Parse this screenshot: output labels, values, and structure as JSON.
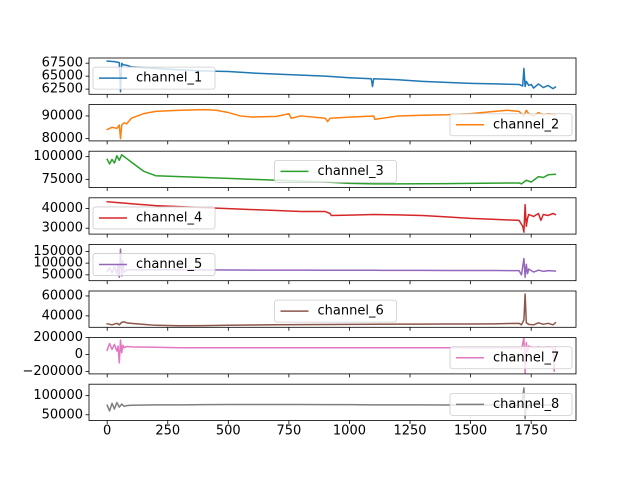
{
  "chart_data": {
    "type": "line",
    "layout": "8 stacked subplots sharing x axis",
    "xlim": [
      -75,
      1935
    ],
    "x_ticks": [
      0,
      250,
      500,
      750,
      1000,
      1250,
      1500,
      1750
    ],
    "x_tick_labels": [
      "0",
      "250",
      "500",
      "750",
      "1000",
      "1250",
      "1500",
      "1750"
    ],
    "grid": false,
    "panels": [
      {
        "name": "channel_1",
        "color": "#1f77b4",
        "legend_loc": "left",
        "ylim": [
          61500,
          68500
        ],
        "yticks": [
          62500,
          65000,
          67500
        ],
        "ytick_labels": [
          "62500",
          "65000",
          "67500"
        ],
        "x": [
          0,
          30,
          50,
          55,
          60,
          65,
          80,
          100,
          200,
          300,
          400,
          500,
          600,
          700,
          800,
          900,
          1000,
          1090,
          1095,
          1100,
          1200,
          1300,
          1400,
          1500,
          1600,
          1700,
          1715,
          1720,
          1725,
          1730,
          1740,
          1750,
          1760,
          1780,
          1800,
          1820,
          1840,
          1850
        ],
        "values": [
          67900,
          67800,
          67600,
          62000,
          67500,
          67200,
          67100,
          66800,
          66500,
          66200,
          66000,
          65900,
          65600,
          65400,
          65200,
          65000,
          64700,
          64500,
          63000,
          64500,
          64300,
          64000,
          63800,
          63600,
          63500,
          63400,
          63100,
          66500,
          63000,
          64000,
          63200,
          63400,
          62700,
          63500,
          62800,
          63200,
          62600,
          62900
        ]
      },
      {
        "name": "channel_2",
        "color": "#ff7f0e",
        "legend_loc": "right",
        "ylim": [
          79000,
          95000
        ],
        "yticks": [
          80000,
          90000
        ],
        "ytick_labels": [
          "80000",
          "90000"
        ],
        "x": [
          0,
          20,
          40,
          50,
          55,
          60,
          70,
          80,
          100,
          150,
          200,
          300,
          400,
          450,
          500,
          550,
          600,
          700,
          750,
          760,
          800,
          900,
          910,
          920,
          1000,
          1100,
          1105,
          1200,
          1300,
          1400,
          1500,
          1600,
          1650,
          1700,
          1720,
          1730,
          1740,
          1760,
          1780,
          1800,
          1820,
          1850
        ],
        "values": [
          84000,
          85000,
          84500,
          86000,
          80000,
          86000,
          87000,
          86500,
          89000,
          91000,
          92000,
          92500,
          92800,
          92500,
          91500,
          90000,
          89500,
          89800,
          91000,
          89000,
          90000,
          89000,
          87500,
          89000,
          89500,
          90000,
          88500,
          90000,
          90300,
          90500,
          91000,
          92000,
          92500,
          92000,
          90000,
          92500,
          91000,
          90000,
          91500,
          90500,
          91000,
          90500
        ]
      },
      {
        "name": "channel_3",
        "color": "#2ca02c",
        "legend_loc": "center",
        "ylim": [
          66000,
          106000
        ],
        "yticks": [
          75000,
          100000
        ],
        "ytick_labels": [
          "75000",
          "100000"
        ],
        "x": [
          0,
          10,
          20,
          30,
          40,
          50,
          60,
          70,
          80,
          100,
          150,
          200,
          300,
          400,
          500,
          600,
          700,
          800,
          900,
          1000,
          1100,
          1200,
          1300,
          1400,
          1500,
          1600,
          1700,
          1710,
          1730,
          1750,
          1780,
          1800,
          1820,
          1850
        ],
        "values": [
          97000,
          92000,
          97000,
          93000,
          101000,
          96000,
          102000,
          100000,
          98000,
          94000,
          84000,
          79000,
          78000,
          77000,
          76000,
          75000,
          74000,
          73000,
          72000,
          70500,
          70000,
          70000,
          70200,
          70300,
          70500,
          70800,
          71000,
          70000,
          74000,
          72000,
          78000,
          77000,
          80000,
          80500
        ]
      },
      {
        "name": "channel_4",
        "color": "#d62728",
        "legend_loc": "left",
        "ylim": [
          27000,
          45500
        ],
        "yticks": [
          30000,
          40000
        ],
        "ytick_labels": [
          "30000",
          "40000"
        ],
        "x": [
          0,
          50,
          100,
          200,
          300,
          400,
          500,
          600,
          700,
          800,
          900,
          920,
          925,
          1000,
          1100,
          1200,
          1300,
          1400,
          1500,
          1600,
          1700,
          1715,
          1720,
          1725,
          1730,
          1735,
          1740,
          1760,
          1780,
          1790,
          1800,
          1820,
          1840,
          1850
        ],
        "values": [
          43500,
          43000,
          42500,
          41500,
          41000,
          40500,
          40000,
          39500,
          39000,
          38500,
          38500,
          37500,
          36500,
          36700,
          37000,
          36800,
          36500,
          35800,
          35000,
          34500,
          34000,
          31000,
          28000,
          42000,
          31000,
          35000,
          37000,
          36000,
          37500,
          34000,
          37000,
          36500,
          37500,
          37000
        ]
      },
      {
        "name": "channel_5",
        "color": "#9467bd",
        "legend_loc": "left",
        "ylim": [
          25000,
          180000
        ],
        "yticks": [
          50000,
          100000,
          150000
        ],
        "ytick_labels": [
          "50000",
          "100000",
          "150000"
        ],
        "x": [
          0,
          10,
          20,
          30,
          40,
          45,
          50,
          55,
          60,
          65,
          70,
          80,
          100,
          200,
          300,
          400,
          500,
          600,
          700,
          800,
          900,
          1000,
          1100,
          1200,
          1300,
          1400,
          1500,
          1600,
          1700,
          1710,
          1720,
          1725,
          1730,
          1735,
          1740,
          1760,
          1780,
          1800,
          1820,
          1850
        ],
        "values": [
          65000,
          80000,
          60000,
          85000,
          55000,
          95000,
          40000,
          160000,
          45000,
          110000,
          60000,
          70000,
          72000,
          72000,
          71500,
          71000,
          70500,
          70200,
          70000,
          70000,
          69800,
          69500,
          69500,
          69000,
          69000,
          68800,
          68500,
          68500,
          68000,
          50000,
          120000,
          40000,
          95000,
          55000,
          75000,
          62000,
          70000,
          65000,
          68000,
          66000
        ]
      },
      {
        "name": "channel_6",
        "color": "#8c564b",
        "legend_loc": "center",
        "ylim": [
          28500,
          65000
        ],
        "yticks": [
          40000,
          60000
        ],
        "ytick_labels": [
          "40000",
          "60000"
        ],
        "x": [
          0,
          20,
          40,
          50,
          60,
          70,
          80,
          100,
          150,
          200,
          300,
          400,
          500,
          600,
          700,
          800,
          900,
          1000,
          1100,
          1200,
          1300,
          1400,
          1500,
          1600,
          1700,
          1710,
          1720,
          1725,
          1730,
          1740,
          1760,
          1780,
          1800,
          1820,
          1840,
          1850
        ],
        "values": [
          32000,
          31000,
          32500,
          31000,
          33500,
          34000,
          33000,
          32500,
          31500,
          30500,
          30000,
          30200,
          30500,
          30800,
          31000,
          31200,
          31300,
          31500,
          31600,
          31700,
          31700,
          31800,
          31800,
          32000,
          32500,
          31000,
          36000,
          62000,
          33000,
          31500,
          31000,
          33000,
          31500,
          32500,
          31000,
          33000
        ]
      },
      {
        "name": "channel_7",
        "color": "#e377c2",
        "legend_loc": "right",
        "ylim": [
          -230000,
          200000
        ],
        "yticks": [
          -200000,
          0,
          200000
        ],
        "ytick_labels": [
          "−200000",
          "0",
          "200000"
        ],
        "x": [
          0,
          10,
          20,
          30,
          40,
          45,
          50,
          55,
          60,
          65,
          70,
          80,
          100,
          200,
          300,
          400,
          500,
          600,
          700,
          800,
          900,
          1000,
          1100,
          1200,
          1300,
          1400,
          1500,
          1600,
          1700,
          1710,
          1720,
          1725,
          1730,
          1735,
          1740,
          1760,
          1780,
          1800,
          1820,
          1840,
          1845,
          1850
        ],
        "values": [
          50000,
          130000,
          60000,
          120000,
          40000,
          100000,
          -100000,
          170000,
          20000,
          110000,
          80000,
          95000,
          90000,
          85000,
          80000,
          80000,
          80000,
          80000,
          80000,
          80000,
          80000,
          80000,
          80000,
          80000,
          80000,
          80000,
          80000,
          80000,
          80000,
          60000,
          200000,
          -220000,
          140000,
          30000,
          100000,
          80000,
          90000,
          85000,
          90000,
          80000,
          -200000,
          90000
        ]
      },
      {
        "name": "channel_8",
        "color": "#7f7f7f",
        "legend_loc": "right",
        "ylim": [
          35000,
          130000
        ],
        "yticks": [
          50000,
          100000
        ],
        "ytick_labels": [
          "50000",
          "100000"
        ],
        "x": [
          0,
          10,
          20,
          30,
          40,
          50,
          60,
          70,
          80,
          100,
          200,
          300,
          400,
          500,
          600,
          700,
          800,
          900,
          1000,
          1100,
          1200,
          1300,
          1400,
          1500,
          1600,
          1700,
          1710,
          1720,
          1725,
          1730,
          1735,
          1740,
          1760,
          1780,
          1800,
          1820,
          1850
        ],
        "values": [
          75000,
          60000,
          80000,
          65000,
          82000,
          70000,
          78000,
          72000,
          74000,
          75000,
          76000,
          76000,
          76500,
          77000,
          77000,
          77000,
          77000,
          76500,
          76500,
          76000,
          76000,
          76000,
          75500,
          75500,
          75500,
          75500,
          70000,
          120000,
          40000,
          85000,
          65000,
          76000,
          74000,
          77000,
          75000,
          76000,
          75500
        ]
      }
    ]
  }
}
